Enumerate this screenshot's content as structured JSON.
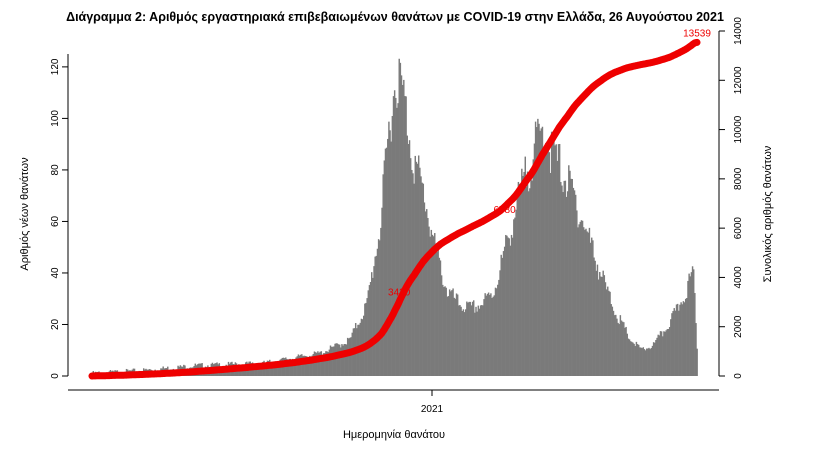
{
  "chart_data": {
    "type": "bar",
    "title": "Διάγραμμα 2: Αριθμός εργαστηριακά επιβεβαιωμένων θανάτων με COVID-19 στην Ελλάδα, 26 Αυγούστου 2021",
    "xlabel": "Ημερομηνία θανάτου",
    "ylabel": "Αριθμός νέων θανάτων",
    "y2label": "Συνολικός αριθμός θανάτων",
    "x_tick_labels": [
      "2021"
    ],
    "ylim": [
      0,
      125
    ],
    "yticks": [
      0,
      20,
      40,
      60,
      80,
      100,
      120
    ],
    "y2lim": [
      0,
      14000
    ],
    "y2ticks": [
      0,
      2000,
      4000,
      6000,
      8000,
      10000,
      12000,
      14000
    ],
    "grid": false,
    "legend": "none",
    "colors": {
      "bars": "#7a7a7a",
      "cumulative_line": "#ee0000"
    },
    "daily_profile_keypoints": [
      [
        0,
        1
      ],
      [
        40,
        2
      ],
      [
        90,
        4
      ],
      [
        150,
        5
      ],
      [
        200,
        9
      ],
      [
        225,
        14
      ],
      [
        240,
        28
      ],
      [
        252,
        60
      ],
      [
        260,
        100
      ],
      [
        266,
        118
      ],
      [
        272,
        108
      ],
      [
        280,
        85
      ],
      [
        290,
        70
      ],
      [
        300,
        48
      ],
      [
        310,
        33
      ],
      [
        320,
        28
      ],
      [
        330,
        26
      ],
      [
        340,
        28
      ],
      [
        350,
        32
      ],
      [
        360,
        48
      ],
      [
        370,
        65
      ],
      [
        380,
        80
      ],
      [
        390,
        92
      ],
      [
        395,
        96
      ],
      [
        400,
        88
      ],
      [
        410,
        80
      ],
      [
        420,
        70
      ],
      [
        430,
        58
      ],
      [
        440,
        45
      ],
      [
        450,
        32
      ],
      [
        460,
        22
      ],
      [
        470,
        14
      ],
      [
        480,
        10
      ],
      [
        490,
        12
      ],
      [
        500,
        18
      ],
      [
        510,
        25
      ],
      [
        520,
        35
      ],
      [
        525,
        40
      ],
      [
        528,
        12
      ]
    ],
    "annotations": [
      {
        "text": "3420",
        "x": 283,
        "y2": 3420
      },
      {
        "text": "6780",
        "x": 375,
        "y2": 6780
      },
      {
        "text": "13539",
        "x": 528,
        "y2": 13539
      }
    ]
  }
}
